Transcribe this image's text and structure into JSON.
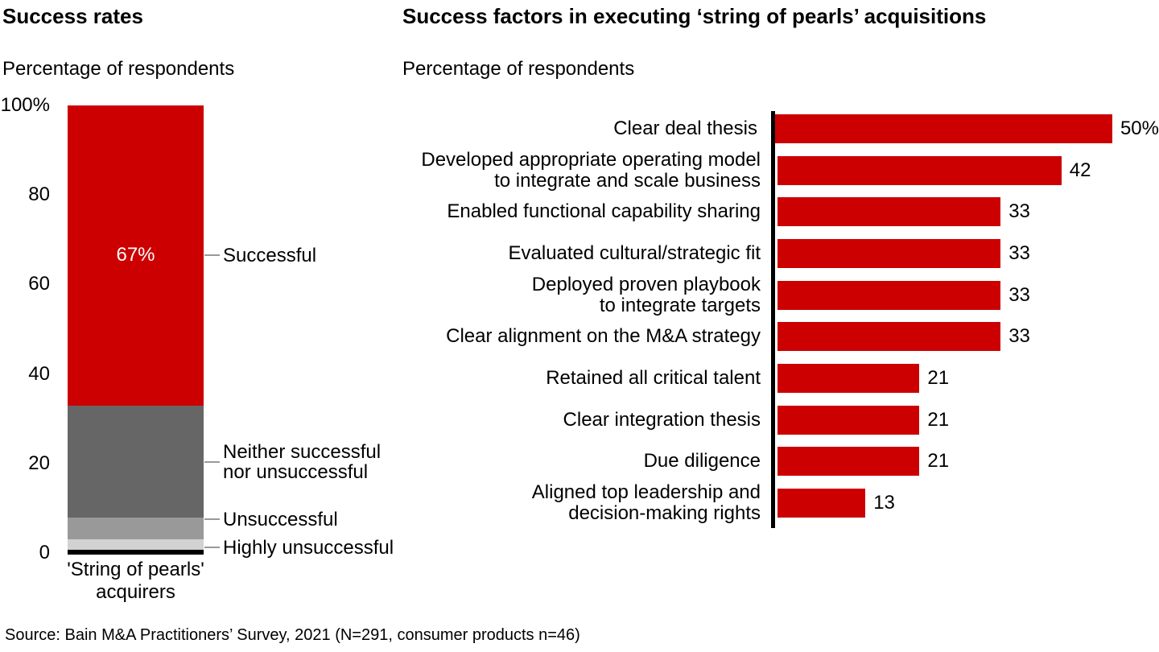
{
  "chart_data": [
    {
      "type": "bar",
      "subtype": "stacked-column",
      "title": "Success rates",
      "subtitle": "Percentage of respondents",
      "categories": [
        "'String of pearls' acquirers"
      ],
      "category_label_lines": [
        "'String of pearls'",
        "acquirers"
      ],
      "ylim": [
        0,
        100
      ],
      "y_ticks": [
        "100%",
        "80",
        "60",
        "40",
        "20",
        "0"
      ],
      "grid": false,
      "legend_position": "right-of-bar-callouts",
      "series": [
        {
          "name": "Successful",
          "values": [
            67
          ],
          "data_label": "67%",
          "color": "#cc0000",
          "label_lines": [
            "Successful"
          ]
        },
        {
          "name": "Neither successful nor unsuccessful",
          "values": [
            25
          ],
          "color": "#666666",
          "label_lines": [
            "Neither successful",
            "nor unsuccessful"
          ]
        },
        {
          "name": "Unsuccessful",
          "values": [
            5
          ],
          "color": "#999999",
          "label_lines": [
            "Unsuccessful"
          ]
        },
        {
          "name": "Highly unsuccessful",
          "values": [
            3
          ],
          "color": "#d2d2d2",
          "label_lines": [
            "Highly unsuccessful"
          ]
        }
      ]
    },
    {
      "type": "bar",
      "subtype": "horizontal",
      "title": "Success factors in executing ‘string of pearls’ acquisitions",
      "subtitle": "Percentage of respondents",
      "xlim": [
        0,
        50
      ],
      "grid": false,
      "bar_color": "#cc0000",
      "axis_color": "#000000",
      "bars": [
        {
          "label_lines": [
            "Clear deal thesis"
          ],
          "value": 50,
          "value_label": "50%"
        },
        {
          "label_lines": [
            "Developed appropriate operating model",
            "to integrate and scale business"
          ],
          "value": 42,
          "value_label": "42"
        },
        {
          "label_lines": [
            "Enabled functional capability sharing"
          ],
          "value": 33,
          "value_label": "33"
        },
        {
          "label_lines": [
            "Evaluated cultural/strategic fit"
          ],
          "value": 33,
          "value_label": "33"
        },
        {
          "label_lines": [
            "Deployed proven playbook",
            "to integrate targets"
          ],
          "value": 33,
          "value_label": "33"
        },
        {
          "label_lines": [
            "Clear alignment on the M&A strategy"
          ],
          "value": 33,
          "value_label": "33"
        },
        {
          "label_lines": [
            "Retained all critical talent"
          ],
          "value": 21,
          "value_label": "21"
        },
        {
          "label_lines": [
            "Clear integration thesis"
          ],
          "value": 21,
          "value_label": "21"
        },
        {
          "label_lines": [
            "Due diligence"
          ],
          "value": 21,
          "value_label": "21"
        },
        {
          "label_lines": [
            "Aligned top leadership and",
            "decision-making rights"
          ],
          "value": 13,
          "value_label": "13"
        }
      ]
    }
  ],
  "source": "Source: Bain M&A Practitioners’ Survey, 2021 (N=291, consumer products n=46)"
}
